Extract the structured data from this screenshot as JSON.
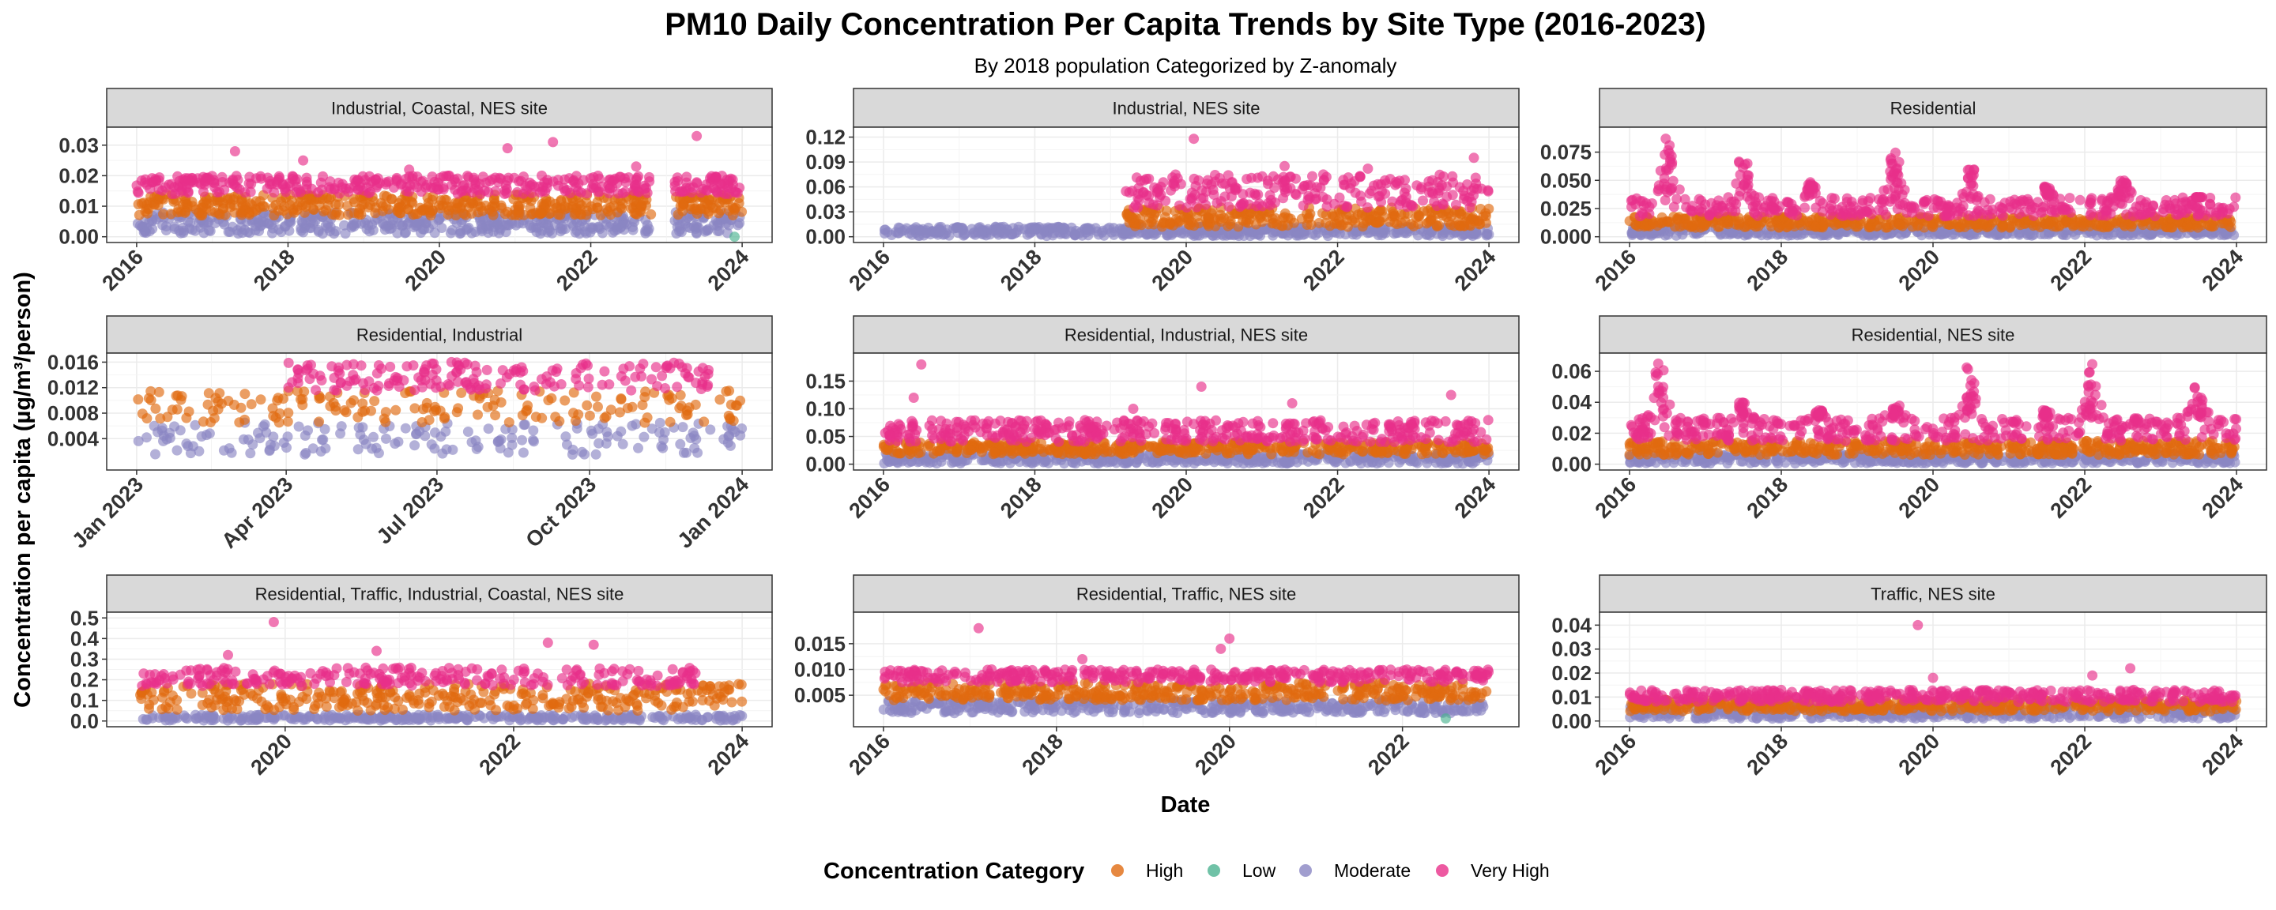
{
  "title": "PM10  Daily Concentration Per Capita Trends by Site Type (2016-2023)",
  "subtitle": "By 2018 population Categorized by Z-anomaly",
  "ylabel": "Concentration per capita (µg/m³/person)",
  "xlabel": "Date",
  "legend": {
    "title": "Concentration Category",
    "position": "bottom",
    "items": [
      {
        "label": "High",
        "color": "#E06A10"
      },
      {
        "label": "Low",
        "color": "#4CB391"
      },
      {
        "label": "Moderate",
        "color": "#8A86C3"
      },
      {
        "label": "Very High",
        "color": "#E8308A"
      }
    ]
  },
  "chart_data": [
    {
      "type": "scatter",
      "facet": "Industrial, Coastal, NES site",
      "x_range": [
        2016,
        2024
      ],
      "ylim": [
        0,
        0.034
      ],
      "x_ticks": [
        2016,
        2018,
        2020,
        2022,
        2024
      ],
      "x_tick_labels": [
        "2016",
        "2018",
        "2020",
        "2022",
        "2024"
      ],
      "y_ticks": [
        0,
        0.01,
        0.02,
        0.03
      ],
      "y_tick_labels": [
        "0.00",
        "0.01",
        "0.02",
        "0.03"
      ],
      "series": [
        {
          "name": "Moderate",
          "band": [
            0.001,
            0.008
          ],
          "x_range": [
            2016,
            2024
          ]
        },
        {
          "name": "High",
          "band": [
            0.007,
            0.014
          ],
          "x_range": [
            2016,
            2024
          ]
        },
        {
          "name": "Very High",
          "band": [
            0.014,
            0.02
          ],
          "x_range": [
            2016,
            2024
          ],
          "outliers": [
            [
              2017.3,
              0.028
            ],
            [
              2018.2,
              0.025
            ],
            [
              2019.6,
              0.022
            ],
            [
              2020.9,
              0.029
            ],
            [
              2021.5,
              0.031
            ],
            [
              2023.4,
              0.033
            ],
            [
              2022.6,
              0.023
            ]
          ]
        },
        {
          "name": "Low",
          "points": [
            [
              2023.9,
              0.0
            ]
          ]
        }
      ],
      "gap": [
        2022.8,
        2023.1
      ]
    },
    {
      "type": "scatter",
      "facet": "Industrial, NES site",
      "x_range": [
        2016,
        2024
      ],
      "ylim": [
        0,
        0.125
      ],
      "x_ticks": [
        2016,
        2018,
        2020,
        2022,
        2024
      ],
      "x_tick_labels": [
        "2016",
        "2018",
        "2020",
        "2022",
        "2024"
      ],
      "y_ticks": [
        0,
        0.03,
        0.06,
        0.09,
        0.12
      ],
      "y_tick_labels": [
        "0.00",
        "0.03",
        "0.06",
        "0.09",
        "0.12"
      ],
      "series": [
        {
          "name": "Moderate",
          "band": [
            0.001,
            0.012
          ],
          "x_range": [
            2016,
            2024
          ]
        },
        {
          "name": "High",
          "band": [
            0.012,
            0.035
          ],
          "x_range": [
            2019.2,
            2024
          ]
        },
        {
          "name": "Very High",
          "band": [
            0.035,
            0.075
          ],
          "x_range": [
            2019.2,
            2024
          ],
          "outliers": [
            [
              2020.1,
              0.118
            ],
            [
              2023.8,
              0.095
            ],
            [
              2021.3,
              0.085
            ],
            [
              2022.4,
              0.082
            ]
          ]
        }
      ]
    },
    {
      "type": "scatter",
      "facet": "Residential",
      "x_range": [
        2016,
        2024
      ],
      "ylim": [
        0,
        0.092
      ],
      "x_ticks": [
        2016,
        2018,
        2020,
        2022,
        2024
      ],
      "x_tick_labels": [
        "2016",
        "2018",
        "2020",
        "2022",
        "2024"
      ],
      "y_ticks": [
        0,
        0.025,
        0.05,
        0.075
      ],
      "y_tick_labels": [
        "0.000",
        "0.025",
        "0.050",
        "0.075"
      ],
      "series": [
        {
          "name": "Moderate",
          "band": [
            0.001,
            0.009
          ],
          "x_range": [
            2016,
            2024
          ]
        },
        {
          "name": "High",
          "band": [
            0.008,
            0.018
          ],
          "x_range": [
            2016,
            2024
          ]
        },
        {
          "name": "Very High",
          "band": [
            0.018,
            0.035
          ],
          "x_range": [
            2016,
            2024
          ],
          "peaks": [
            [
              2016.5,
              0.09
            ],
            [
              2017.5,
              0.07
            ],
            [
              2018.4,
              0.05
            ],
            [
              2019.5,
              0.075
            ],
            [
              2020.5,
              0.06
            ],
            [
              2021.5,
              0.045
            ],
            [
              2022.5,
              0.05
            ],
            [
              2023.5,
              0.035
            ]
          ]
        }
      ]
    },
    {
      "type": "scatter",
      "facet": "Residential, Industrial",
      "x_range": [
        2023.0,
        2024.0
      ],
      "ylim": [
        0,
        0.0165
      ],
      "x_ticks": [
        2023.0,
        2023.247,
        2023.496,
        2023.748,
        2024.0
      ],
      "x_tick_labels": [
        "Jan 2023",
        "Apr 2023",
        "Jul 2023",
        "Oct 2023",
        "Jan 2024"
      ],
      "y_ticks": [
        0.004,
        0.008,
        0.012,
        0.016
      ],
      "y_tick_labels": [
        "0.004",
        "0.008",
        "0.012",
        "0.016"
      ],
      "series": [
        {
          "name": "Moderate",
          "band": [
            0.0015,
            0.0065
          ],
          "x_range": [
            2023.0,
            2024.0
          ]
        },
        {
          "name": "High",
          "band": [
            0.0065,
            0.0115
          ],
          "x_range": [
            2023.0,
            2024.0
          ]
        },
        {
          "name": "Very High",
          "band": [
            0.0115,
            0.016
          ],
          "x_range": [
            2023.25,
            2023.95
          ],
          "outliers": [
            [
              2023.52,
              0.016
            ],
            [
              2023.4,
              0.0155
            ]
          ]
        }
      ]
    },
    {
      "type": "scatter",
      "facet": "Residential, Industrial, NES site",
      "x_range": [
        2016,
        2024
      ],
      "ylim": [
        0,
        0.19
      ],
      "x_ticks": [
        2016,
        2018,
        2020,
        2022,
        2024
      ],
      "x_tick_labels": [
        "2016",
        "2018",
        "2020",
        "2022",
        "2024"
      ],
      "y_ticks": [
        0,
        0.05,
        0.1,
        0.15
      ],
      "y_tick_labels": [
        "0.00",
        "0.05",
        "0.10",
        "0.15"
      ],
      "series": [
        {
          "name": "Moderate",
          "band": [
            0.001,
            0.02
          ],
          "x_range": [
            2016,
            2024
          ]
        },
        {
          "name": "High",
          "band": [
            0.018,
            0.04
          ],
          "x_range": [
            2016,
            2024
          ]
        },
        {
          "name": "Very High",
          "band": [
            0.04,
            0.08
          ],
          "x_range": [
            2016,
            2024
          ],
          "outliers": [
            [
              2016.5,
              0.18
            ],
            [
              2016.4,
              0.12
            ],
            [
              2020.2,
              0.14
            ],
            [
              2023.5,
              0.125
            ],
            [
              2019.3,
              0.1
            ],
            [
              2021.4,
              0.11
            ]
          ]
        }
      ]
    },
    {
      "type": "scatter",
      "facet": "Residential, NES site",
      "x_range": [
        2016,
        2024
      ],
      "ylim": [
        0,
        0.068
      ],
      "x_ticks": [
        2016,
        2018,
        2020,
        2022,
        2024
      ],
      "x_tick_labels": [
        "2016",
        "2018",
        "2020",
        "2022",
        "2024"
      ],
      "y_ticks": [
        0,
        0.02,
        0.04,
        0.06
      ],
      "y_tick_labels": [
        "0.00",
        "0.02",
        "0.04",
        "0.06"
      ],
      "series": [
        {
          "name": "Moderate",
          "band": [
            0.0005,
            0.007
          ],
          "x_range": [
            2016,
            2024
          ]
        },
        {
          "name": "High",
          "band": [
            0.006,
            0.015
          ],
          "x_range": [
            2016,
            2024
          ]
        },
        {
          "name": "Very High",
          "band": [
            0.015,
            0.03
          ],
          "x_range": [
            2016,
            2024
          ],
          "peaks": [
            [
              2016.4,
              0.065
            ],
            [
              2017.5,
              0.04
            ],
            [
              2018.5,
              0.035
            ],
            [
              2019.5,
              0.038
            ],
            [
              2020.5,
              0.063
            ],
            [
              2021.5,
              0.035
            ],
            [
              2022.1,
              0.065
            ],
            [
              2023.5,
              0.05
            ]
          ]
        }
      ]
    },
    {
      "type": "scatter",
      "facet": "Residential, Traffic, Industrial, Coastal, NES site",
      "x_range": [
        2018.7,
        2024
      ],
      "ylim": [
        0,
        0.5
      ],
      "x_ticks": [
        2020,
        2022,
        2024
      ],
      "x_tick_labels": [
        "2020",
        "2022",
        "2024"
      ],
      "y_ticks": [
        0,
        0.1,
        0.2,
        0.3,
        0.4,
        0.5
      ],
      "y_tick_labels": [
        "0.0",
        "0.1",
        "0.2",
        "0.3",
        "0.4",
        "0.5"
      ],
      "series": [
        {
          "name": "Moderate",
          "band": [
            0.002,
            0.03
          ],
          "x_range": [
            2018.7,
            2024
          ]
        },
        {
          "name": "High",
          "band": [
            0.05,
            0.18
          ],
          "x_range": [
            2018.7,
            2024
          ]
        },
        {
          "name": "Very High",
          "band": [
            0.17,
            0.26
          ],
          "x_range": [
            2018.7,
            2023.6
          ],
          "outliers": [
            [
              2019.9,
              0.48
            ],
            [
              2022.3,
              0.38
            ],
            [
              2022.7,
              0.37
            ],
            [
              2020.8,
              0.34
            ],
            [
              2019.5,
              0.32
            ]
          ]
        }
      ]
    },
    {
      "type": "scatter",
      "facet": "Residential, Traffic, NES site",
      "x_range": [
        2016,
        2023
      ],
      "ylim": [
        0,
        0.02
      ],
      "x_ticks": [
        2016,
        2018,
        2020,
        2022
      ],
      "x_tick_labels": [
        "2016",
        "2018",
        "2020",
        "2022"
      ],
      "y_ticks": [
        0.005,
        0.01,
        0.015
      ],
      "y_tick_labels": [
        "0.005",
        "0.010",
        "0.015"
      ],
      "series": [
        {
          "name": "Moderate",
          "band": [
            0.0015,
            0.004
          ],
          "x_range": [
            2016,
            2023
          ]
        },
        {
          "name": "High",
          "band": [
            0.004,
            0.0075
          ],
          "x_range": [
            2016,
            2023
          ]
        },
        {
          "name": "Very High",
          "band": [
            0.0075,
            0.01
          ],
          "x_range": [
            2016,
            2023
          ],
          "outliers": [
            [
              2017.1,
              0.018
            ],
            [
              2020.0,
              0.016
            ],
            [
              2019.9,
              0.014
            ],
            [
              2018.3,
              0.012
            ]
          ]
        },
        {
          "name": "Low",
          "points": [
            [
              2022.5,
              0.0005
            ]
          ]
        }
      ]
    },
    {
      "type": "scatter",
      "facet": "Traffic, NES site",
      "x_range": [
        2016,
        2024
      ],
      "ylim": [
        0,
        0.043
      ],
      "x_ticks": [
        2016,
        2018,
        2020,
        2022,
        2024
      ],
      "x_tick_labels": [
        "2016",
        "2018",
        "2020",
        "2022",
        "2024"
      ],
      "y_ticks": [
        0,
        0.01,
        0.02,
        0.03,
        0.04
      ],
      "y_tick_labels": [
        "0.00",
        "0.01",
        "0.02",
        "0.03",
        "0.04"
      ],
      "series": [
        {
          "name": "Moderate",
          "band": [
            0.001,
            0.006
          ],
          "x_range": [
            2016,
            2024
          ]
        },
        {
          "name": "High",
          "band": [
            0.004,
            0.009
          ],
          "x_range": [
            2016,
            2024
          ]
        },
        {
          "name": "Very High",
          "band": [
            0.008,
            0.013
          ],
          "x_range": [
            2016,
            2024
          ],
          "outliers": [
            [
              2019.8,
              0.04
            ],
            [
              2022.6,
              0.022
            ],
            [
              2020.0,
              0.018
            ],
            [
              2022.1,
              0.019
            ]
          ]
        }
      ]
    }
  ]
}
